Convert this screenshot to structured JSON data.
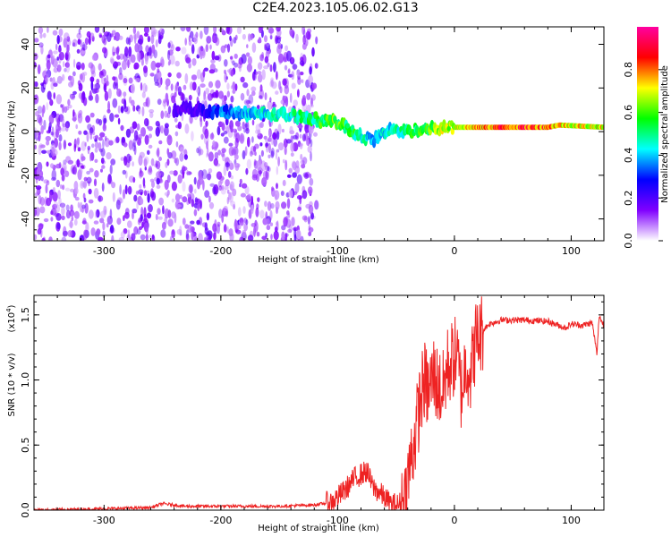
{
  "title": "C2E4.2023.105.06.02.G13",
  "chart_data": [
    {
      "type": "heatmap",
      "title": "C2E4.2023.105.06.02.G13",
      "xlabel": "Height of straight line (km)",
      "ylabel": "Frequency (Hz)",
      "xlim": [
        -360,
        128
      ],
      "ylim": [
        -50,
        48
      ],
      "x_ticks": [
        -300,
        -200,
        -100,
        0,
        100
      ],
      "x_tick_labels": [
        "-300",
        "-200",
        "-100",
        "0",
        "100"
      ],
      "y_ticks": [
        -40,
        -20,
        0,
        20,
        40
      ],
      "y_tick_labels": [
        "-40",
        "-20",
        "0",
        "20",
        "40"
      ],
      "colorbar": {
        "label": "Normalized spectral amplitude",
        "range": [
          0,
          1
        ],
        "ticks": [
          0.0,
          0.2,
          0.4,
          0.6,
          0.8
        ],
        "tick_labels": [
          "0.0",
          "0.2",
          "0.4",
          "0.6",
          "0.8"
        ],
        "colormap": [
          "#ffffff",
          "#8000ff",
          "#0000ff",
          "#00ffff",
          "#00ff00",
          "#ffff00",
          "#ff0000",
          "#ff00a0"
        ]
      },
      "trace": {
        "description_points_x": [
          -360,
          -220,
          -200,
          -160,
          -130,
          -100,
          -80,
          -70,
          -55,
          -45,
          -30,
          0,
          40,
          80,
          90,
          128
        ],
        "frequency_hz": [
          12,
          10,
          9,
          8,
          7,
          4,
          -2,
          -4,
          1,
          0,
          1,
          2,
          2,
          2,
          3,
          2
        ],
        "amplitude": [
          0.1,
          0.2,
          0.35,
          0.45,
          0.5,
          0.6,
          0.5,
          0.4,
          0.45,
          0.5,
          0.55,
          0.7,
          0.85,
          0.85,
          0.75,
          0.7
        ]
      },
      "noise_region_end_x": -128
    },
    {
      "type": "line",
      "xlabel": "Height of straight line (km)",
      "ylabel": "SNR (10 * v/v)",
      "y_multiplier_label": "(x10",
      "y_multiplier_exp": "4",
      "xlim": [
        -360,
        128
      ],
      "ylim": [
        0,
        1.65
      ],
      "x_ticks": [
        -300,
        -200,
        -100,
        0,
        100
      ],
      "x_tick_labels": [
        "-300",
        "-200",
        "-100",
        "0",
        "100"
      ],
      "y_ticks": [
        0.0,
        0.5,
        1.0,
        1.5
      ],
      "y_tick_labels": [
        "0.0",
        "0.5",
        "1.0",
        "1.5"
      ],
      "color": "#ee2222",
      "series": [
        {
          "x": [
            -360,
            -300,
            -260,
            -250,
            -230,
            -200,
            -150,
            -120,
            -105,
            -95,
            -85,
            -75,
            -70,
            -60,
            -55,
            -48,
            -42,
            -38,
            -34,
            -30,
            -26,
            -22,
            -18,
            -14,
            -10,
            -6,
            -2,
            2,
            6,
            10,
            14,
            18,
            22,
            26,
            30,
            40,
            60,
            80,
            95,
            100,
            110,
            118,
            122,
            124,
            126,
            128
          ],
          "y": [
            0.0,
            0.01,
            0.02,
            0.05,
            0.03,
            0.03,
            0.03,
            0.04,
            0.06,
            0.14,
            0.25,
            0.3,
            0.18,
            0.1,
            0.05,
            0.04,
            0.1,
            0.35,
            0.55,
            0.8,
            1.0,
            0.9,
            1.05,
            0.95,
            0.9,
            1.1,
            1.15,
            1.2,
            0.9,
            1.15,
            1.05,
            1.3,
            1.35,
            1.4,
            1.43,
            1.46,
            1.46,
            1.45,
            1.4,
            1.43,
            1.42,
            1.44,
            1.2,
            1.5,
            1.45,
            1.42
          ]
        }
      ]
    }
  ]
}
